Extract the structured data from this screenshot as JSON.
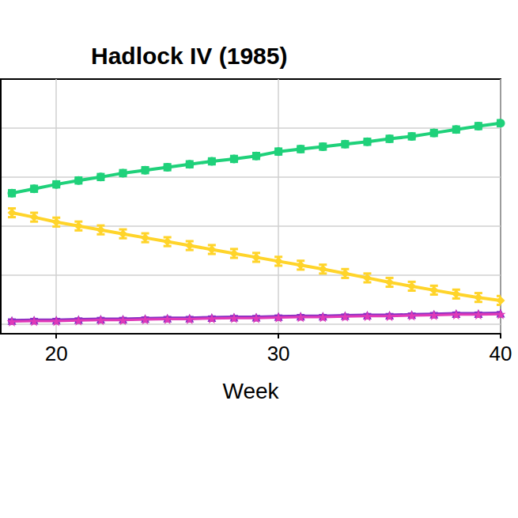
{
  "chart_data": {
    "type": "line",
    "title": "Hadlock IV (1985)",
    "x_label": "Week",
    "x": [
      18,
      19,
      20,
      21,
      22,
      23,
      24,
      25,
      26,
      27,
      28,
      29,
      30,
      31,
      32,
      33,
      34,
      35,
      36,
      37,
      38,
      39,
      40
    ],
    "series": [
      {
        "color": "#1fd17a",
        "marker": "circle",
        "values": [
          3.67,
          3.76,
          3.85,
          3.93,
          4.0,
          4.08,
          4.14,
          4.2,
          4.26,
          4.32,
          4.37,
          4.43,
          4.52,
          4.57,
          4.62,
          4.67,
          4.72,
          4.78,
          4.83,
          4.9,
          4.97,
          5.04,
          5.1
        ],
        "errors": [
          0.06,
          0.06,
          0.06,
          0.06,
          0.06,
          0.06,
          0.06,
          0.06,
          0.06,
          0.06,
          0.06,
          0.06,
          0.06,
          0.06,
          0.06,
          0.06,
          0.06,
          0.06,
          0.06,
          0.06,
          0.06,
          0.06,
          0.06
        ]
      },
      {
        "color": "#ffd42a",
        "marker": "diamond",
        "values": [
          3.27,
          3.18,
          3.08,
          3.0,
          2.92,
          2.84,
          2.76,
          2.68,
          2.6,
          2.52,
          2.44,
          2.36,
          2.28,
          2.2,
          2.12,
          2.03,
          1.94,
          1.85,
          1.77,
          1.69,
          1.61,
          1.54,
          1.48
        ],
        "errors": [
          0.09,
          0.09,
          0.09,
          0.09,
          0.09,
          0.09,
          0.09,
          0.09,
          0.09,
          0.09,
          0.09,
          0.09,
          0.09,
          0.09,
          0.09,
          0.09,
          0.09,
          0.09,
          0.09,
          0.09,
          0.09,
          0.09,
          0.09
        ]
      },
      {
        "color": "#8a2fc4",
        "marker": "triangle",
        "values": [
          1.07,
          1.08,
          1.08,
          1.09,
          1.1,
          1.1,
          1.11,
          1.12,
          1.12,
          1.13,
          1.14,
          1.14,
          1.15,
          1.16,
          1.16,
          1.17,
          1.18,
          1.18,
          1.19,
          1.2,
          1.21,
          1.21,
          1.22
        ],
        "errors": [
          0.02,
          0.02,
          0.02,
          0.02,
          0.02,
          0.02,
          0.02,
          0.02,
          0.02,
          0.02,
          0.02,
          0.02,
          0.02,
          0.02,
          0.02,
          0.02,
          0.02,
          0.02,
          0.02,
          0.02,
          0.02,
          0.02,
          0.02
        ]
      },
      {
        "color": "#e03ab8",
        "marker": "star",
        "values": [
          1.05,
          1.06,
          1.06,
          1.07,
          1.08,
          1.08,
          1.09,
          1.1,
          1.1,
          1.11,
          1.12,
          1.12,
          1.13,
          1.14,
          1.14,
          1.15,
          1.16,
          1.16,
          1.17,
          1.18,
          1.19,
          1.19,
          1.2
        ]
      }
    ],
    "xlim": [
      17.5,
      40
    ],
    "xticks": [
      20,
      30,
      40
    ],
    "ylim": [
      0.8,
      6
    ],
    "yticks": [
      1,
      2,
      3,
      4,
      5
    ],
    "grid": true,
    "tick_labels": "x"
  }
}
